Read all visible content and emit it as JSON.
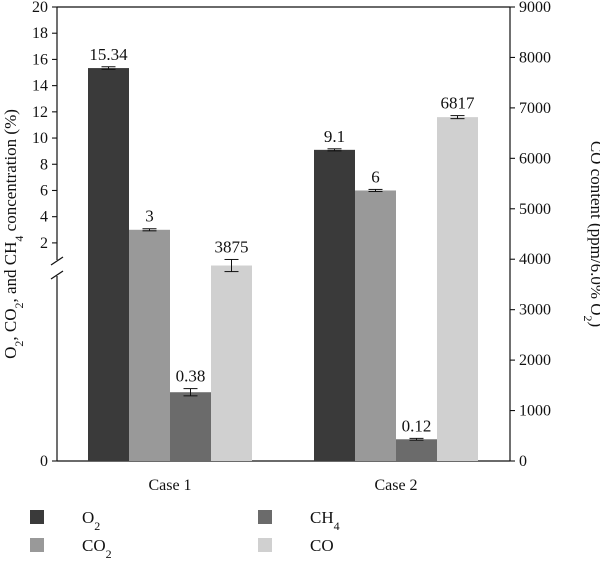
{
  "chart_data": {
    "type": "bar",
    "categories": [
      "Case 1",
      "Case 2"
    ],
    "series": [
      {
        "name": "O",
        "sub": "2",
        "axis": "left",
        "color": "#3a3a3a",
        "values": [
          15.34,
          9.1
        ],
        "labels": [
          "15.34",
          "9.1"
        ],
        "err": [
          0.1,
          0.08
        ]
      },
      {
        "name": "CO",
        "sub": "2",
        "axis": "left",
        "color": "#999999",
        "values": [
          3,
          6
        ],
        "labels": [
          "3",
          "6"
        ],
        "err": [
          0.08,
          0.08
        ]
      },
      {
        "name": "CH",
        "sub": "4",
        "axis": "left",
        "color": "#6b6b6b",
        "values": [
          0.38,
          0.12
        ],
        "labels": [
          "0.38",
          "0.12"
        ],
        "err": [
          0.02,
          0.005
        ]
      },
      {
        "name": "CO",
        "sub": "",
        "axis": "right",
        "color": "#d0d0d0",
        "values": [
          3875,
          6817
        ],
        "labels": [
          "3875",
          "6817"
        ],
        "err": [
          120,
          30
        ]
      }
    ],
    "left_axis": {
      "label_parts": [
        "O",
        "2",
        ", CO",
        "2",
        ", and CH",
        "4",
        " concentration (%)"
      ],
      "lower_range": [
        0,
        1
      ],
      "upper_range": [
        1,
        20
      ],
      "ticks": [
        0,
        2,
        4,
        6,
        8,
        10,
        12,
        14,
        16,
        18,
        20
      ],
      "axis_break": true
    },
    "right_axis": {
      "label_parts": [
        "CO content (ppm/6.0% O",
        "2",
        ")"
      ],
      "range": [
        0,
        9000
      ],
      "ticks": [
        0,
        1000,
        2000,
        3000,
        4000,
        5000,
        6000,
        7000,
        8000,
        9000
      ]
    },
    "legend_position": "bottom"
  }
}
